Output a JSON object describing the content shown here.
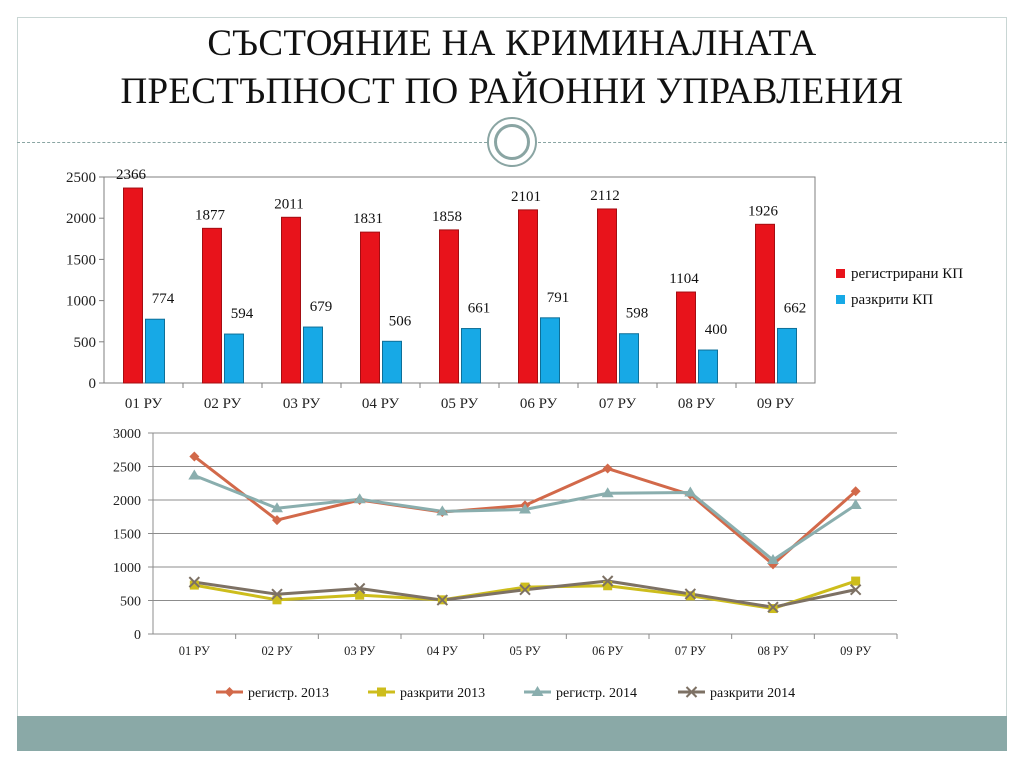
{
  "title": {
    "line1": "СЪСТОЯНИЕ НА КРИМИНАЛНАТА",
    "line2": "ПРЕСТЪПНОСТ ПО РАЙОННИ УПРАВЛЕНИЯ"
  },
  "colors": {
    "accent": "#8aa9a7",
    "reg_bar": "#e8131b",
    "solved_bar": "#17a9e6",
    "reg2013": "#d2694a",
    "solved2013": "#cdbd1c",
    "reg2014": "#8aaeae",
    "solved2014": "#7d7164"
  },
  "chart_data": [
    {
      "type": "bar",
      "categories": [
        "01 РУ",
        "02 РУ",
        "03 РУ",
        "04 РУ",
        "05 РУ",
        "06 РУ",
        "07 РУ",
        "08 РУ",
        "09 РУ"
      ],
      "series": [
        {
          "name": "регистрирани КП",
          "values": [
            2366,
            1877,
            2011,
            1831,
            1858,
            2101,
            2112,
            1104,
            1926
          ]
        },
        {
          "name": "разкрити КП",
          "values": [
            774,
            594,
            679,
            506,
            661,
            791,
            598,
            400,
            662
          ]
        }
      ],
      "yticks": [
        "0",
        "500",
        "1000",
        "1500",
        "2000",
        "2500"
      ],
      "ylim": [
        0,
        2500
      ],
      "grid": false,
      "legend": "right"
    },
    {
      "type": "line",
      "categories": [
        "01 РУ",
        "02 РУ",
        "03 РУ",
        "04 РУ",
        "05 РУ",
        "06 РУ",
        "07 РУ",
        "08 РУ",
        "09 РУ"
      ],
      "series": [
        {
          "name": "регистр. 2013",
          "marker": "diamond",
          "values": [
            2650,
            1700,
            2000,
            1820,
            1920,
            2470,
            2080,
            1040,
            2130
          ]
        },
        {
          "name": "разкрити 2013",
          "marker": "square",
          "values": [
            730,
            510,
            580,
            510,
            700,
            720,
            570,
            380,
            790
          ]
        },
        {
          "name": "регистр. 2014",
          "marker": "triangle",
          "values": [
            2366,
            1877,
            2011,
            1831,
            1858,
            2101,
            2112,
            1104,
            1926
          ]
        },
        {
          "name": "разкрити 2014",
          "marker": "x",
          "values": [
            774,
            594,
            679,
            506,
            661,
            791,
            598,
            400,
            662
          ]
        }
      ],
      "yticks": [
        "0",
        "500",
        "1000",
        "1500",
        "2000",
        "2500",
        "3000"
      ],
      "ylim": [
        0,
        3000
      ],
      "grid": true,
      "legend": "bottom"
    }
  ]
}
